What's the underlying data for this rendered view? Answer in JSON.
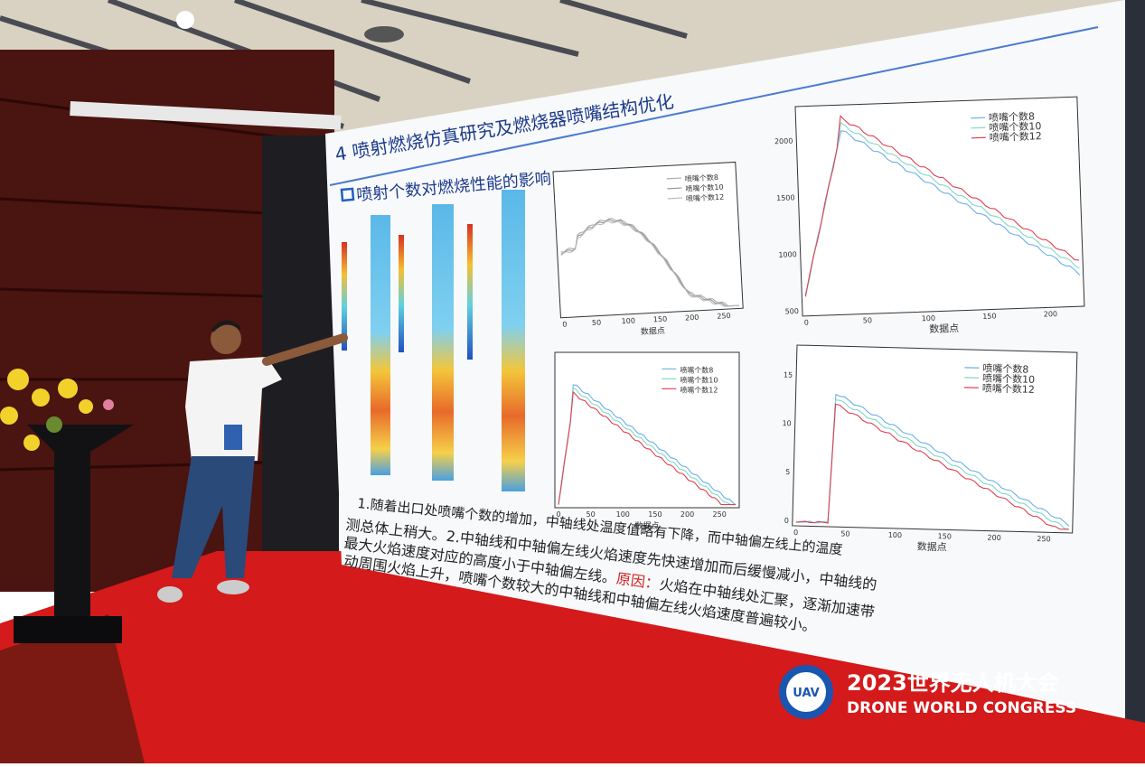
{
  "slide": {
    "section": "4 喷射燃烧仿真研究及燃烧器喷嘴结构优化",
    "subtitle": "喷射个数对燃烧性能的影响",
    "charts": [
      {
        "legend": [
          "喷嘴个数8",
          "喷嘴个数10",
          "喷嘴个数12"
        ],
        "xlabel": "数据点",
        "xticks": [
          0,
          50,
          100,
          150,
          200,
          250
        ]
      },
      {
        "legend": [
          "喷嘴个数8",
          "喷嘴个数10",
          "喷嘴个数12"
        ],
        "xlabel": "数据点",
        "xticks": [
          0,
          50,
          100,
          150,
          200
        ],
        "yticks": [
          500,
          1000,
          1500,
          2000
        ]
      },
      {
        "legend": [
          "喷嘴个数8",
          "喷嘴个数10",
          "喷嘴个数12"
        ],
        "xlabel": "数据点",
        "xticks": [
          0,
          50,
          100,
          150,
          200,
          250
        ]
      },
      {
        "legend": [
          "喷嘴个数8",
          "喷嘴个数10",
          "喷嘴个数12"
        ],
        "xlabel": "数据点",
        "xticks": [
          0,
          50,
          100,
          150,
          200,
          250
        ],
        "yticks": [
          0,
          5,
          10,
          15
        ]
      }
    ],
    "body": [
      "1.随着出口处喷嘴个数的增加，中轴线处温度值略有下降，而中轴偏左线上的温度",
      "测总体上稍大。2.中轴线和中轴偏左线火焰速度先快速增加而后缓慢减小，中轴线的",
      "最大火焰速度对应的高度小于中轴偏左线。",
      "原因：",
      "火焰在中轴线处汇聚，逐渐加速带",
      "动周围火焰上升，喷嘴个数较大的中轴线和中轴偏左线火焰速度普遍较小。"
    ]
  },
  "banner": {
    "badge": "UAV",
    "title": "2023世界无人机大会",
    "subtitle": "DRONE WORLD CONGRESS"
  }
}
